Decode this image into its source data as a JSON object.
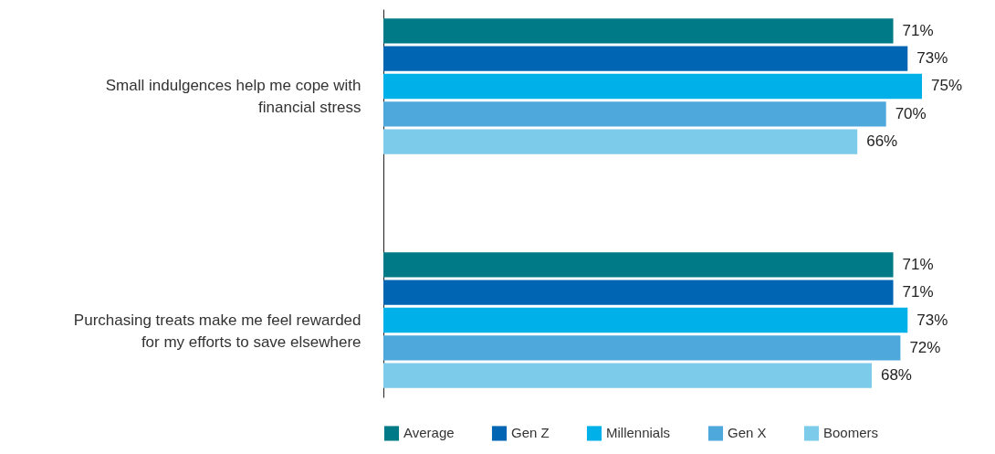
{
  "chart_data": {
    "type": "bar",
    "orientation": "horizontal",
    "categories": [
      "Small indulgences help me cope with financial stress",
      "Purchasing treats make me feel rewarded for my efforts to save elsewhere"
    ],
    "series": [
      {
        "name": "Average",
        "color": "#007a87",
        "values": [
          71,
          71
        ],
        "value_labels": [
          "71%",
          "71%"
        ]
      },
      {
        "name": "Gen Z",
        "color": "#0066b3",
        "values": [
          73,
          71
        ],
        "value_labels": [
          "73%",
          "71%"
        ]
      },
      {
        "name": "Millennials",
        "color": "#00b0e8",
        "values": [
          75,
          73
        ],
        "value_labels": [
          "75%",
          "73%"
        ]
      },
      {
        "name": "Gen X",
        "color": "#4fa8dc",
        "values": [
          70,
          72
        ],
        "value_labels": [
          "70%",
          "72%"
        ]
      },
      {
        "name": "Boomers",
        "color": "#7ccbea",
        "values": [
          66,
          68
        ],
        "value_labels": [
          "66%",
          "68%"
        ]
      }
    ],
    "legend": "bottom"
  }
}
